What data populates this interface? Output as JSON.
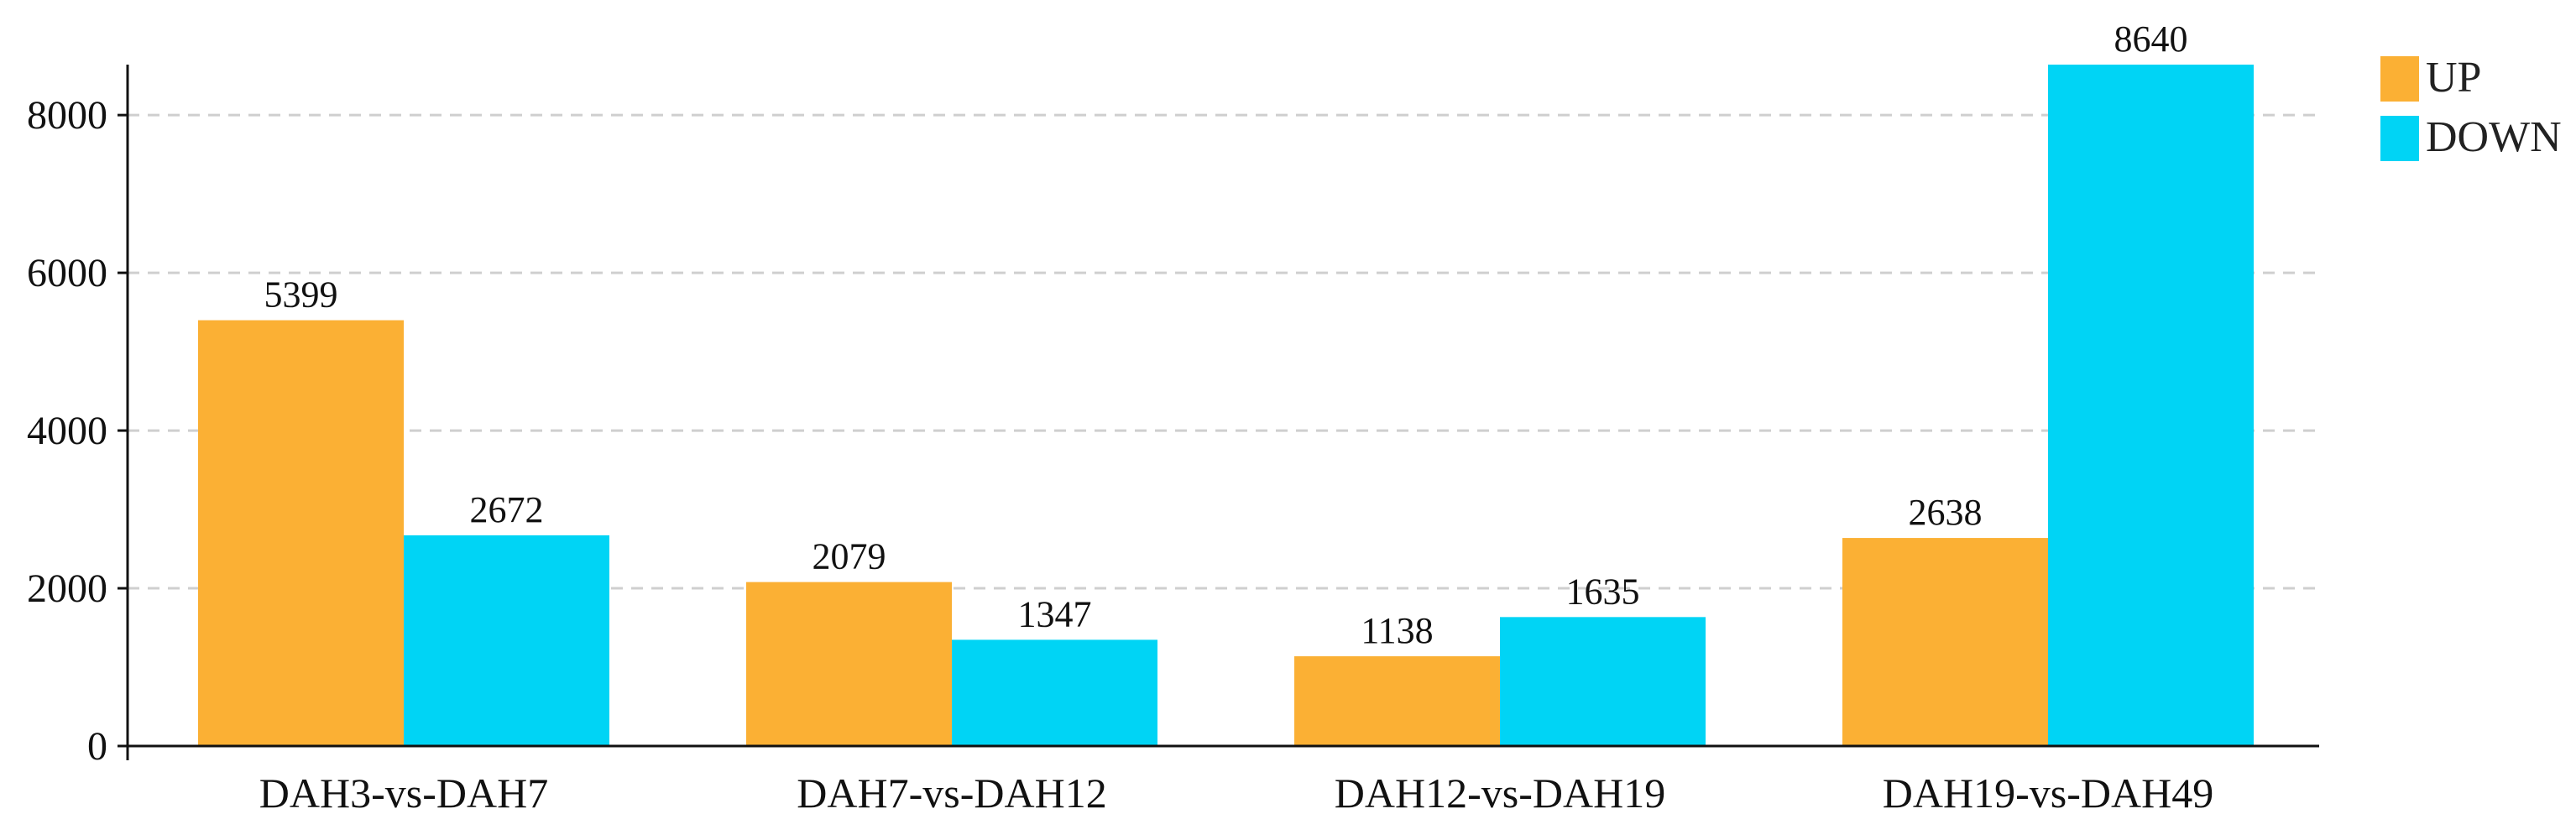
{
  "chart_data": {
    "type": "bar",
    "categories": [
      "DAH3-vs-DAH7",
      "DAH7-vs-DAH12",
      "DAH12-vs-DAH19",
      "DAH19-vs-DAH49"
    ],
    "series": [
      {
        "name": "UP",
        "values": [
          5399,
          2079,
          1138,
          2638
        ],
        "color": "#FBB034"
      },
      {
        "name": "DOWN",
        "values": [
          2672,
          1347,
          1635,
          8640
        ],
        "color": "#00D4F5"
      }
    ],
    "yticks": [
      0,
      2000,
      4000,
      6000,
      8000
    ],
    "ylim": [
      0,
      8640
    ],
    "grid": "horizontal dashed",
    "legend_position": "top-right",
    "title": "",
    "xlabel": "",
    "ylabel": ""
  }
}
